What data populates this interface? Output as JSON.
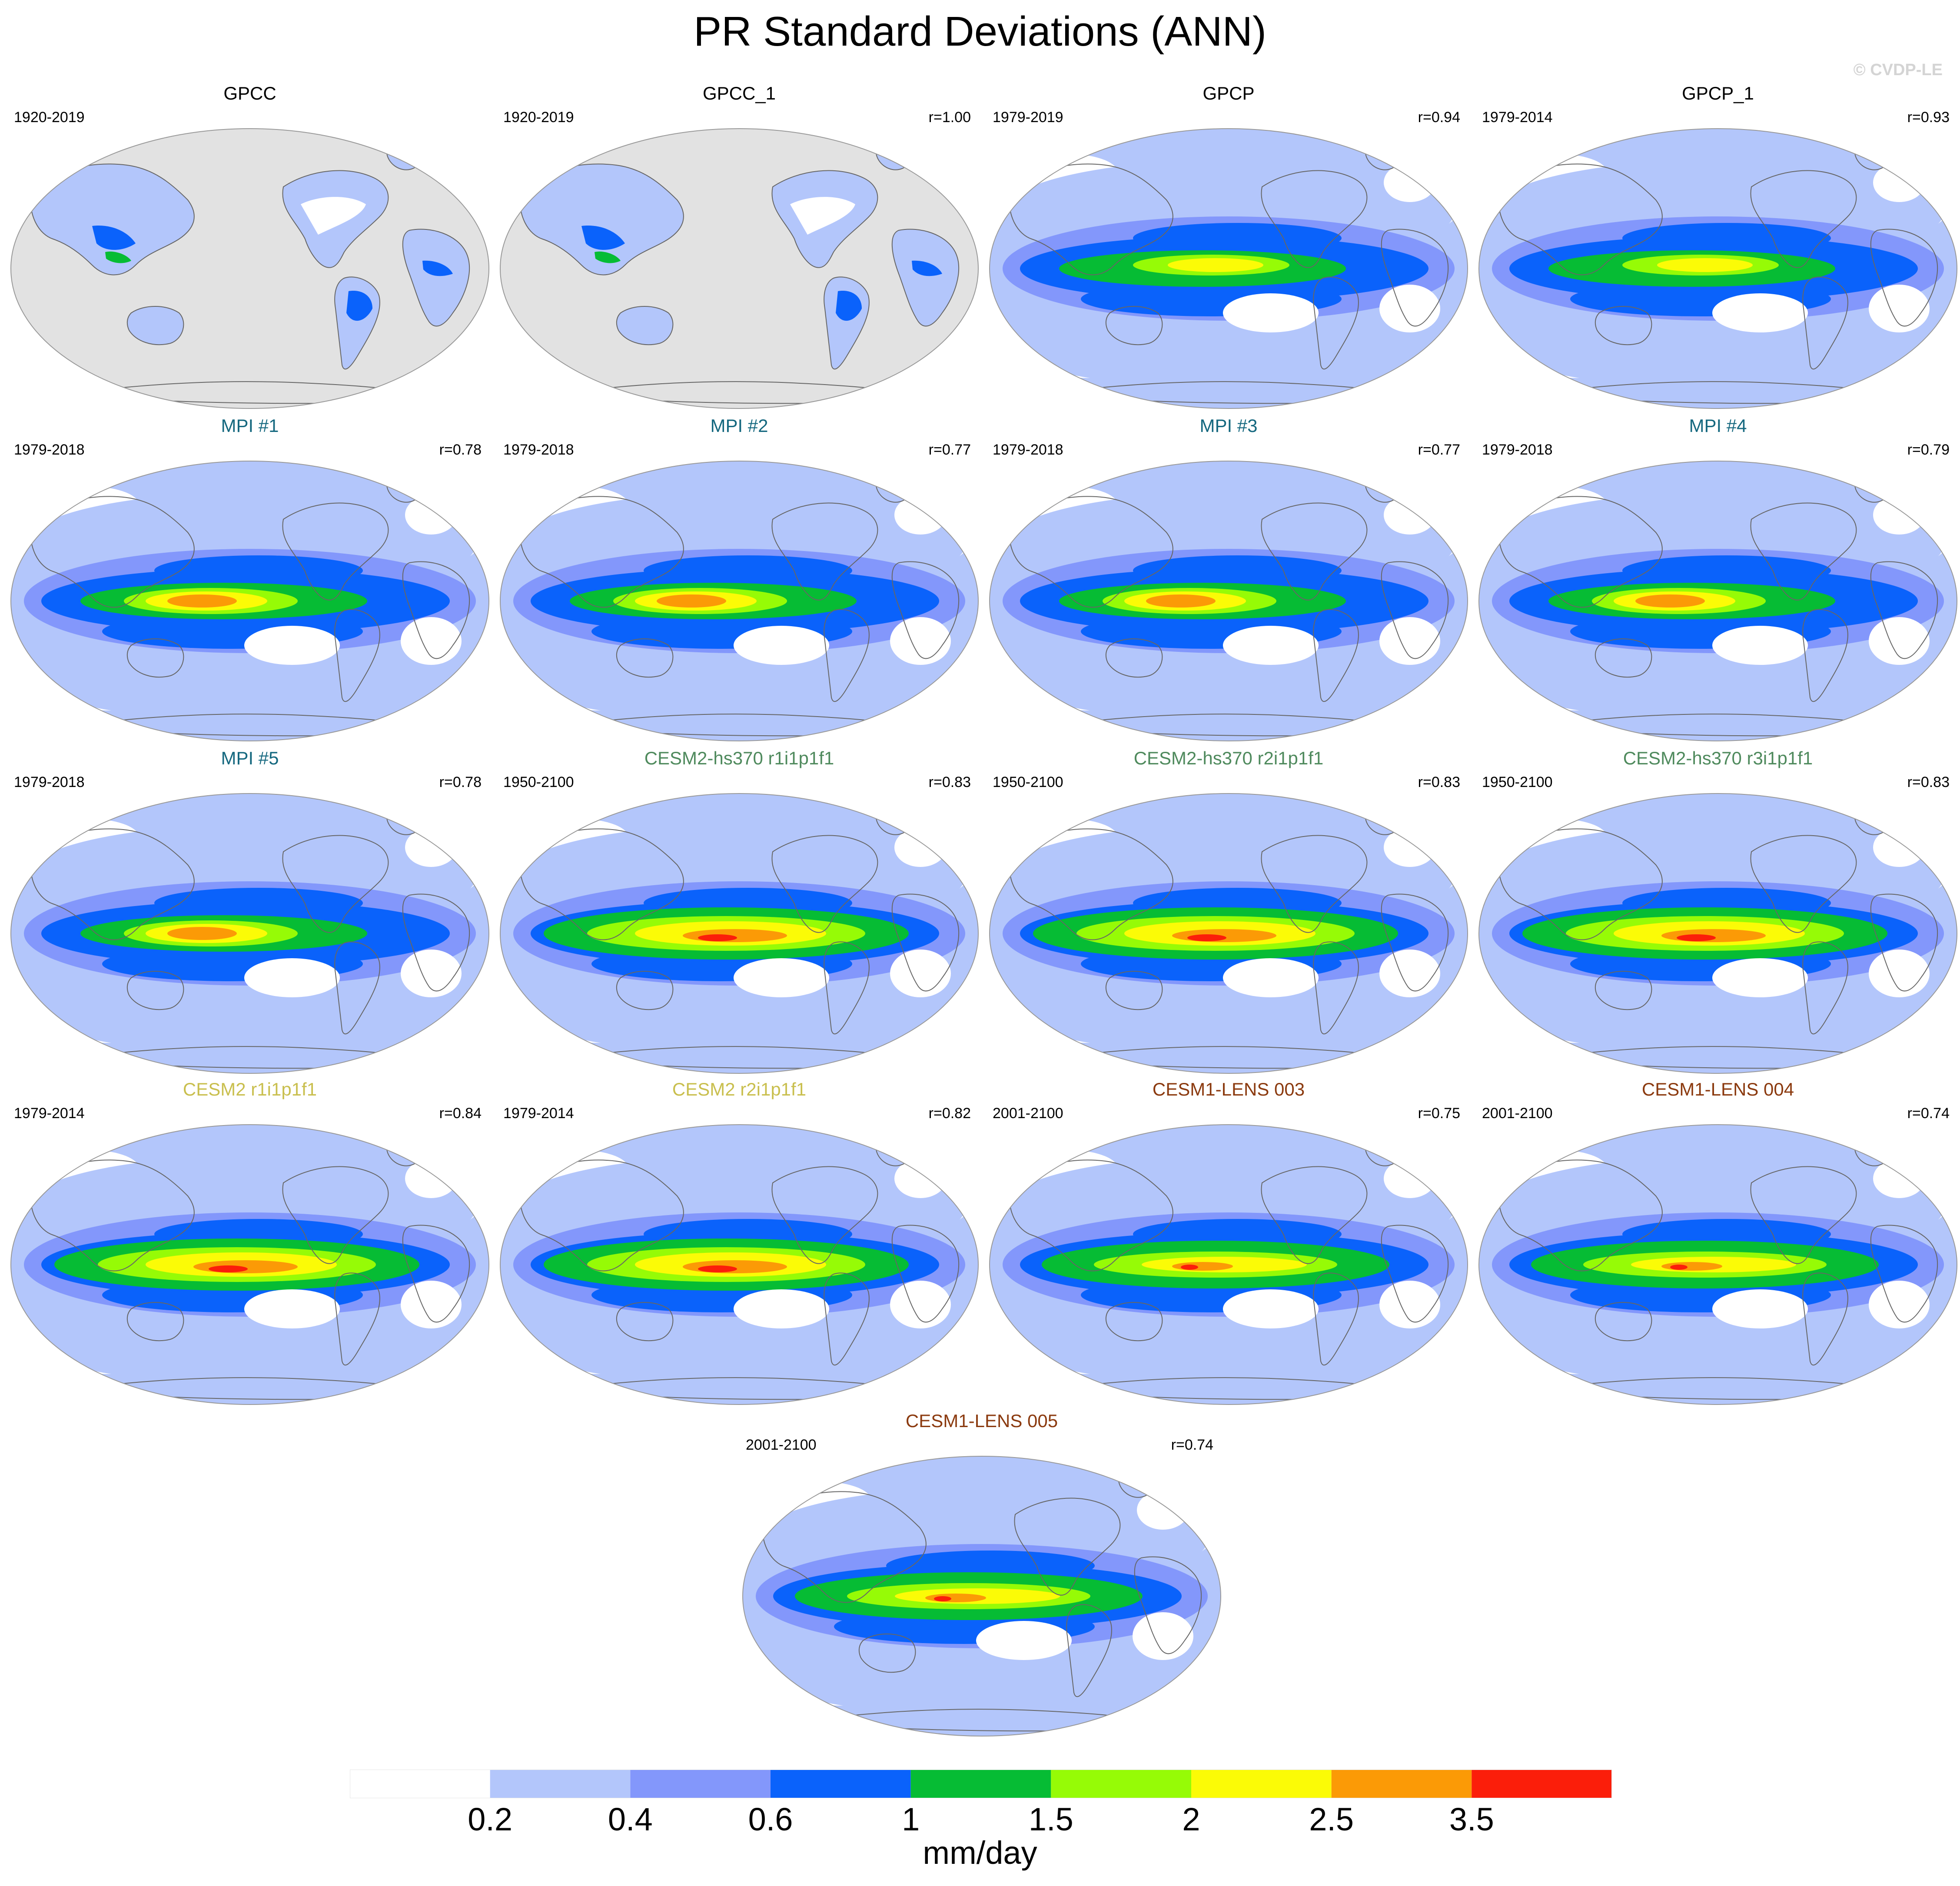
{
  "title": "PR Standard Deviations (ANN)",
  "watermark": "© CVDP-LE",
  "colorbar": {
    "units": "mm/day",
    "ticks": [
      "0.2",
      "0.4",
      "0.6",
      "1",
      "1.5",
      "2",
      "2.5",
      "3.5"
    ],
    "colors": [
      "#ffffff",
      "#b3c6fb",
      "#8397fb",
      "#0a62fb",
      "#06bc34",
      "#96fb06",
      "#fbfb06",
      "#fb9a06",
      "#fb1e0a"
    ]
  },
  "panels": [
    {
      "title": "GPCC",
      "years": "1920-2019",
      "r": "",
      "title_color": "#000000",
      "kind": "obs_land"
    },
    {
      "title": "GPCC_1",
      "years": "1920-2019",
      "r": "r=1.00",
      "title_color": "#000000",
      "kind": "obs_land"
    },
    {
      "title": "GPCP",
      "years": "1979-2019",
      "r": "r=0.94",
      "title_color": "#000000",
      "kind": "obs"
    },
    {
      "title": "GPCP_1",
      "years": "1979-2014",
      "r": "r=0.93",
      "title_color": "#000000",
      "kind": "obs"
    },
    {
      "title": "MPI #1",
      "years": "1979-2018",
      "r": "r=0.78",
      "title_color": "#15687f",
      "kind": "mpi"
    },
    {
      "title": "MPI #2",
      "years": "1979-2018",
      "r": "r=0.77",
      "title_color": "#15687f",
      "kind": "mpi"
    },
    {
      "title": "MPI #3",
      "years": "1979-2018",
      "r": "r=0.77",
      "title_color": "#15687f",
      "kind": "mpi"
    },
    {
      "title": "MPI #4",
      "years": "1979-2018",
      "r": "r=0.79",
      "title_color": "#15687f",
      "kind": "mpi"
    },
    {
      "title": "MPI #5",
      "years": "1979-2018",
      "r": "r=0.78",
      "title_color": "#15687f",
      "kind": "mpi"
    },
    {
      "title": "CESM2-hs370 r1i1p1f1",
      "years": "1950-2100",
      "r": "r=0.83",
      "title_color": "#4f8a5d",
      "kind": "cesm"
    },
    {
      "title": "CESM2-hs370 r2i1p1f1",
      "years": "1950-2100",
      "r": "r=0.83",
      "title_color": "#4f8a5d",
      "kind": "cesm"
    },
    {
      "title": "CESM2-hs370 r3i1p1f1",
      "years": "1950-2100",
      "r": "r=0.83",
      "title_color": "#4f8a5d",
      "kind": "cesm"
    },
    {
      "title": "CESM2 r1i1p1f1",
      "years": "1979-2014",
      "r": "r=0.84",
      "title_color": "#c9bf4e",
      "kind": "cesm"
    },
    {
      "title": "CESM2 r2i1p1f1",
      "years": "1979-2014",
      "r": "r=0.82",
      "title_color": "#c9bf4e",
      "kind": "cesm"
    },
    {
      "title": "CESM1-LENS 003",
      "years": "2001-2100",
      "r": "r=0.75",
      "title_color": "#8b3a0f",
      "kind": "lens"
    },
    {
      "title": "CESM1-LENS 004",
      "years": "2001-2100",
      "r": "r=0.74",
      "title_color": "#8b3a0f",
      "kind": "lens"
    },
    {
      "title": "CESM1-LENS 005",
      "years": "2001-2100",
      "r": "r=0.74",
      "title_color": "#8b3a0f",
      "kind": "lens"
    }
  ]
}
